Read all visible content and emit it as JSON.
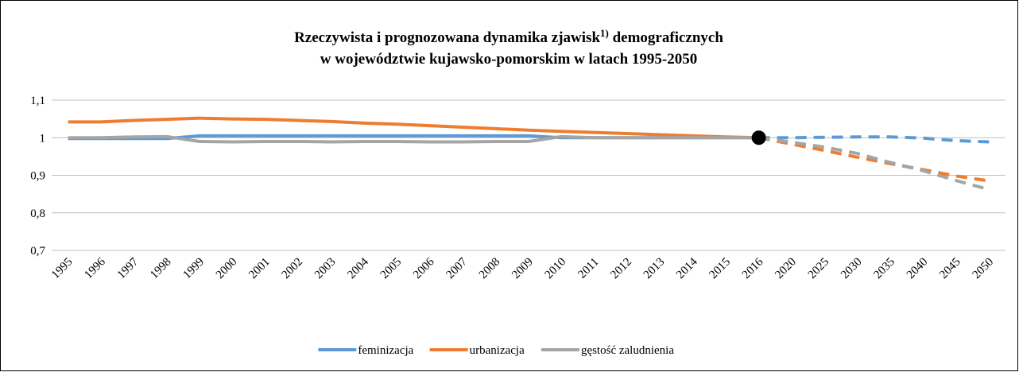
{
  "chart_data": {
    "type": "line",
    "title": [
      "Rzeczywista i prognozowana dynamika zjawisk",
      "1)",
      " demograficznych"
    ],
    "title_line2": "w województwie kujawsko-pomorskim w latach 1995-2050",
    "categories": [
      "1995",
      "1996",
      "1997",
      "1998",
      "1999",
      "2000",
      "2001",
      "2002",
      "2003",
      "2004",
      "2005",
      "2006",
      "2007",
      "2008",
      "2009",
      "2010",
      "2011",
      "2012",
      "2013",
      "2014",
      "2015",
      "2016",
      "2020",
      "2025",
      "2030",
      "2035",
      "2040",
      "2045",
      "2050"
    ],
    "series": [
      {
        "name": "feminizacja",
        "color": "#5b9bd5",
        "values": [
          0.998,
          0.998,
          0.998,
          0.998,
          1.005,
          1.005,
          1.005,
          1.005,
          1.005,
          1.005,
          1.005,
          1.005,
          1.005,
          1.005,
          1.005,
          1.0,
          1.0,
          1.0,
          1.0,
          1.0,
          1.0,
          1.0,
          1.0,
          1.001,
          1.002,
          1.002,
          0.999,
          0.992,
          0.989
        ]
      },
      {
        "name": "urbanizacja",
        "color": "#ed7d31",
        "values": [
          1.042,
          1.042,
          1.046,
          1.049,
          1.052,
          1.05,
          1.049,
          1.046,
          1.043,
          1.039,
          1.036,
          1.032,
          1.028,
          1.024,
          1.02,
          1.017,
          1.014,
          1.011,
          1.008,
          1.005,
          1.002,
          1.0,
          0.983,
          0.966,
          0.948,
          0.931,
          0.915,
          0.898,
          0.885
        ]
      },
      {
        "name": "gęstość zaludnienia",
        "color": "#a5a5a5",
        "values": [
          1.0,
          1.0,
          1.002,
          1.003,
          0.99,
          0.989,
          0.99,
          0.99,
          0.989,
          0.99,
          0.99,
          0.989,
          0.989,
          0.99,
          0.99,
          1.003,
          1.0,
          1.0,
          1.0,
          1.0,
          1.0,
          1.0,
          0.988,
          0.975,
          0.958,
          0.934,
          0.912,
          0.886,
          0.862
        ]
      }
    ],
    "forecast_from": "2016",
    "marker": {
      "category": "2016",
      "value": 1,
      "color": "#000000"
    },
    "ylim": [
      0.7,
      1.1
    ],
    "yticks": [
      {
        "value": 0.7,
        "label": "0,7"
      },
      {
        "value": 0.8,
        "label": "0,8"
      },
      {
        "value": 0.9,
        "label": "0,9"
      },
      1,
      {
        "value": 1.1,
        "label": "1,1"
      }
    ],
    "grid": true,
    "legend": "bottom"
  }
}
